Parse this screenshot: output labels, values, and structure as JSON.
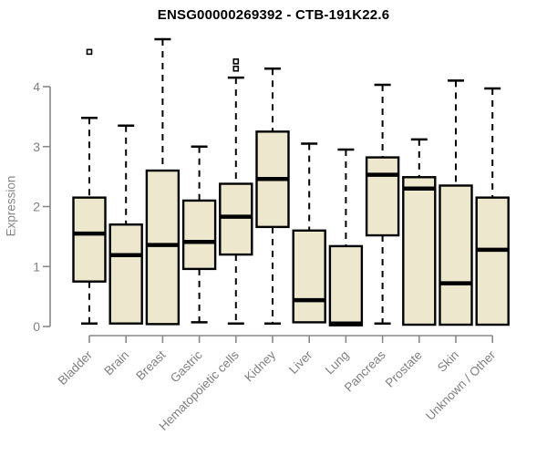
{
  "chart_data": {
    "type": "boxplot",
    "title": "ENSG00000269392 - CTB-191K22.6",
    "ylabel": "Expression",
    "xlabel": "",
    "yticks": [
      0,
      1,
      2,
      3,
      4
    ],
    "ylim": [
      0,
      4.9
    ],
    "grid": false,
    "legend": "none",
    "axis_color": "#888888",
    "text_color": "#808080",
    "box_fill": "#EDE8CD",
    "box_stroke": "#000000",
    "categories": [
      "Bladder",
      "Brain",
      "Breast",
      "Gastric",
      "Hematopoietic cells",
      "Kidney",
      "Liver",
      "Lung",
      "Pancreas",
      "Prostate",
      "Skin",
      "Unknown / Other"
    ],
    "boxes": [
      {
        "category": "Bladder",
        "whisker_low": 0.05,
        "q1": 0.75,
        "median": 1.55,
        "q3": 2.15,
        "whisker_high": 3.48,
        "outliers": [
          4.58
        ]
      },
      {
        "category": "Brain",
        "whisker_low": 0.05,
        "q1": 0.05,
        "median": 1.19,
        "q3": 1.7,
        "whisker_high": 3.35,
        "outliers": []
      },
      {
        "category": "Breast",
        "whisker_low": 0.04,
        "q1": 0.04,
        "median": 1.36,
        "q3": 2.6,
        "whisker_high": 4.79,
        "outliers": []
      },
      {
        "category": "Gastric",
        "whisker_low": 0.07,
        "q1": 0.96,
        "median": 1.41,
        "q3": 2.1,
        "whisker_high": 3.0,
        "outliers": []
      },
      {
        "category": "Hematopoietic cells",
        "whisker_low": 0.05,
        "q1": 1.2,
        "median": 1.83,
        "q3": 2.38,
        "whisker_high": 4.15,
        "outliers": [
          4.3,
          4.42
        ]
      },
      {
        "category": "Kidney",
        "whisker_low": 0.05,
        "q1": 1.66,
        "median": 2.46,
        "q3": 3.25,
        "whisker_high": 4.3,
        "outliers": []
      },
      {
        "category": "Liver",
        "whisker_low": 0.07,
        "q1": 0.07,
        "median": 0.44,
        "q3": 1.6,
        "whisker_high": 3.05,
        "outliers": []
      },
      {
        "category": "Lung",
        "whisker_low": 0.02,
        "q1": 0.02,
        "median": 0.05,
        "q3": 1.34,
        "whisker_high": 2.95,
        "outliers": []
      },
      {
        "category": "Pancreas",
        "whisker_low": 0.05,
        "q1": 1.52,
        "median": 2.53,
        "q3": 2.82,
        "whisker_high": 4.03,
        "outliers": []
      },
      {
        "category": "Prostate",
        "whisker_low": 0.03,
        "q1": 0.03,
        "median": 2.3,
        "q3": 2.49,
        "whisker_high": 3.12,
        "outliers": []
      },
      {
        "category": "Skin",
        "whisker_low": 0.03,
        "q1": 0.03,
        "median": 0.72,
        "q3": 2.35,
        "whisker_high": 4.1,
        "outliers": []
      },
      {
        "category": "Unknown / Other",
        "whisker_low": 0.03,
        "q1": 0.03,
        "median": 1.28,
        "q3": 2.15,
        "whisker_high": 3.97,
        "outliers": []
      }
    ]
  }
}
